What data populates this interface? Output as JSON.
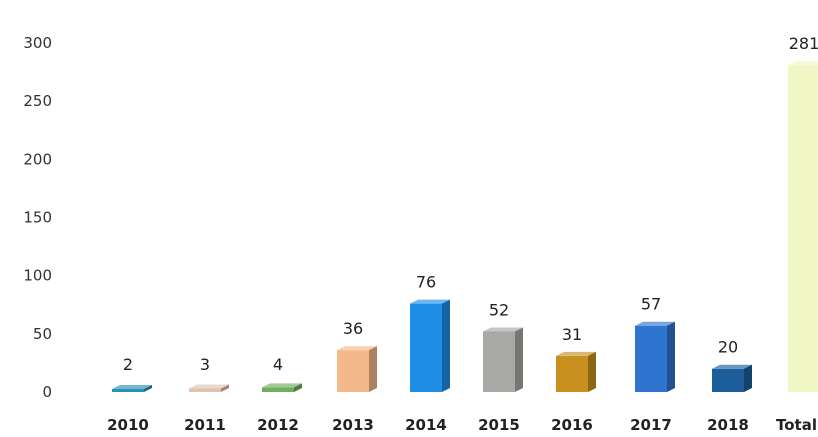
{
  "chart_data": {
    "type": "bar",
    "style": "3d-column",
    "title": "",
    "xlabel": "",
    "ylabel": "",
    "ylim": [
      0,
      300
    ],
    "yticks": [
      0,
      50,
      100,
      150,
      200,
      250,
      300
    ],
    "grid": false,
    "legend": "none",
    "categories": [
      "2010",
      "2011",
      "2012",
      "2013",
      "2014",
      "2015",
      "2016",
      "2017",
      "2018",
      "Total"
    ],
    "values": [
      2,
      3,
      4,
      36,
      76,
      52,
      31,
      57,
      20,
      281
    ],
    "data_labels": [
      "2",
      "3",
      "4",
      "36",
      "76",
      "52",
      "31",
      "57",
      "20",
      "281"
    ],
    "colors": [
      "#2a8fb5",
      "#e0c2b2",
      "#6fae5a",
      "#f4b98a",
      "#1f8ee6",
      "#a8a8a4",
      "#c8901e",
      "#2f74cf",
      "#1b5e9a",
      "#f0f7c4"
    ]
  }
}
